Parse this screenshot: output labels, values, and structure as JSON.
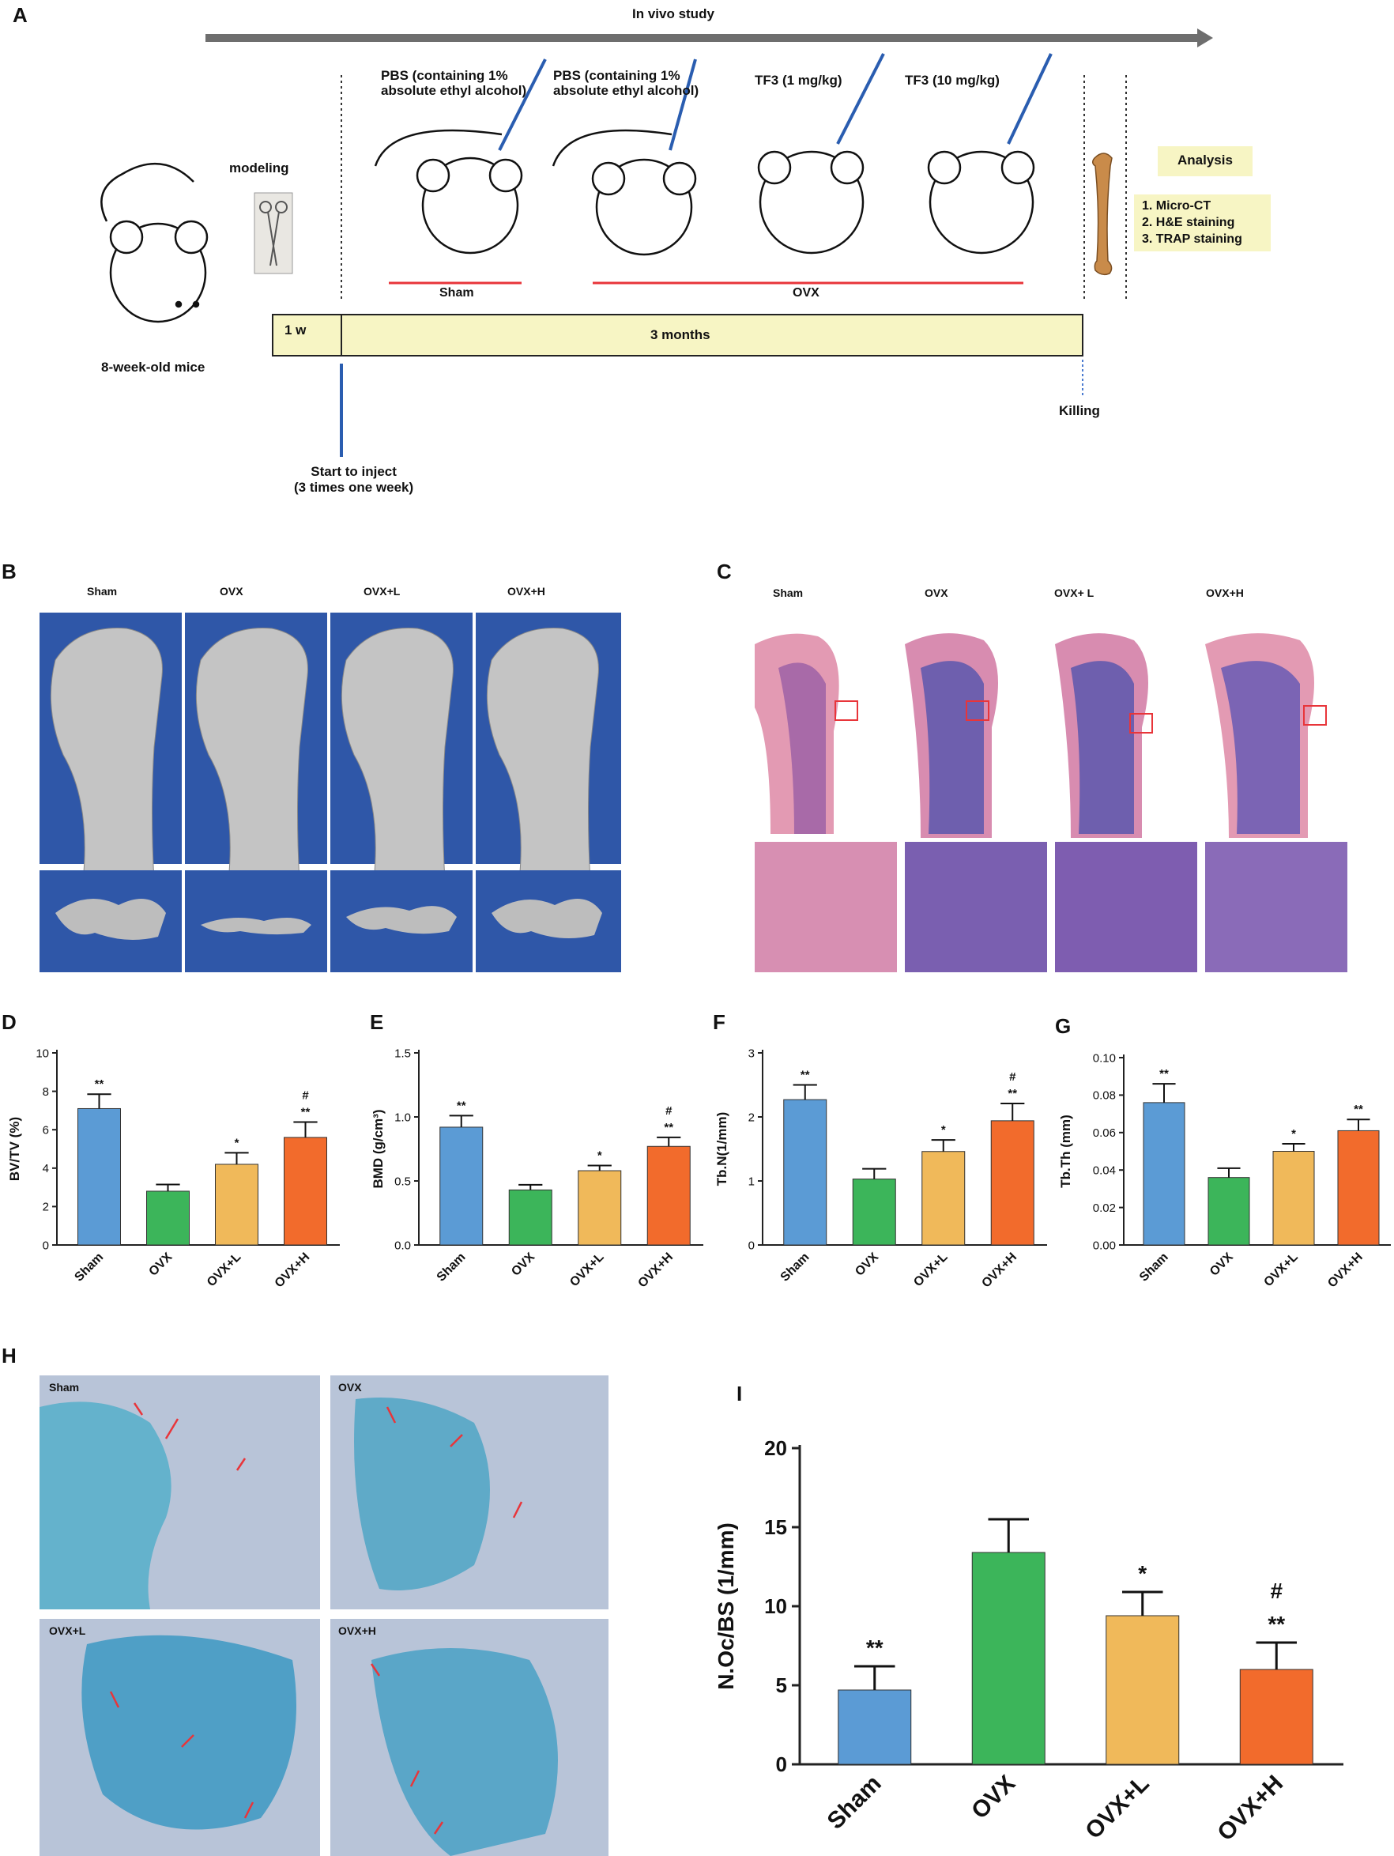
{
  "panel_labels": [
    "A",
    "B",
    "C",
    "D",
    "E",
    "F",
    "G",
    "H",
    "I"
  ],
  "panel_a": {
    "arrow_label": "In vivo study",
    "modeling_label": "modeling",
    "mice_label": "8-week-old mice",
    "groups": [
      {
        "label": "PBS (containing 1%\nabsolute ethyl alcohol)"
      },
      {
        "label": "PBS (containing 1%\nabsolute ethyl alcohol)"
      },
      {
        "label": "TF3 (1 mg/kg)"
      },
      {
        "label": "TF3 (10 mg/kg)"
      }
    ],
    "sham_label": "Sham",
    "ovx_label": "OVX",
    "timeline_week": "1 w",
    "timeline_months": "3 months",
    "inject_label": "Start to inject\n(3 times one week)",
    "killing_label": "Killing",
    "analysis_title": "Analysis",
    "analysis_items": [
      "1. Micro-CT",
      "2. H&E staining",
      "3. TRAP staining"
    ],
    "colors": {
      "timeline_fill": "#f7f5c4",
      "analysis_fill": "#f7f5c4",
      "group_line": "#e8353a",
      "arrow": "#6e6e6e"
    }
  },
  "panel_b": {
    "groups": [
      "Sham",
      "OVX",
      "OVX+L",
      "OVX+H"
    ],
    "background": "#2f57a8"
  },
  "panel_c": {
    "groups": [
      "Sham",
      "OVX",
      "OVX+ L",
      "OVX+H"
    ]
  },
  "panel_h": {
    "groups": [
      "Sham",
      "OVX",
      "OVX+L",
      "OVX+H"
    ]
  },
  "chart_data": [
    {
      "id": "D",
      "type": "bar",
      "categories": [
        "Sham",
        "OVX",
        "OVX+L",
        "OVX+H"
      ],
      "values": [
        7.1,
        2.8,
        4.2,
        5.6
      ],
      "errors": [
        0.75,
        0.35,
        0.6,
        0.8
      ],
      "annotations": [
        "**",
        "",
        "*",
        "#\n**"
      ],
      "ylabel": "BV/TV (%)",
      "ylim": [
        0,
        10
      ],
      "yticks": [
        "0",
        "2",
        "4",
        "6",
        "8",
        "10"
      ],
      "colors": [
        "#5b9bd5",
        "#3cb55a",
        "#f0b95a",
        "#f26b2c"
      ]
    },
    {
      "id": "E",
      "type": "bar",
      "categories": [
        "Sham",
        "OVX",
        "OVX+L",
        "OVX+H"
      ],
      "values": [
        0.92,
        0.43,
        0.58,
        0.77
      ],
      "errors": [
        0.09,
        0.04,
        0.04,
        0.07
      ],
      "annotations": [
        "**",
        "",
        "*",
        "#\n**"
      ],
      "ylabel": "BMD (g/cm³)",
      "ylim": [
        0,
        1.5
      ],
      "yticks": [
        "0.0",
        "0.5",
        "1.0",
        "1.5"
      ],
      "colors": [
        "#5b9bd5",
        "#3cb55a",
        "#f0b95a",
        "#f26b2c"
      ]
    },
    {
      "id": "F",
      "type": "bar",
      "categories": [
        "Sham",
        "OVX",
        "OVX+L",
        "OVX+H"
      ],
      "values": [
        2.27,
        1.03,
        1.46,
        1.94
      ],
      "errors": [
        0.23,
        0.16,
        0.18,
        0.27
      ],
      "annotations": [
        "**",
        "",
        "*",
        "#\n**"
      ],
      "ylabel": "Tb.N(1/mm)",
      "ylim": [
        0,
        3
      ],
      "yticks": [
        "0",
        "1",
        "2",
        "3"
      ],
      "colors": [
        "#5b9bd5",
        "#3cb55a",
        "#f0b95a",
        "#f26b2c"
      ]
    },
    {
      "id": "G",
      "type": "bar",
      "categories": [
        "Sham",
        "OVX",
        "OVX+L",
        "OVX+H"
      ],
      "values": [
        0.076,
        0.036,
        0.05,
        0.061
      ],
      "errors": [
        0.01,
        0.005,
        0.004,
        0.006
      ],
      "annotations": [
        "**",
        "",
        "*",
        "**"
      ],
      "ylabel": "Tb.Th (mm)",
      "ylim": [
        0,
        0.1
      ],
      "yticks": [
        "0.00",
        "0.02",
        "0.04",
        "0.06",
        "0.08",
        "0.10"
      ],
      "colors": [
        "#5b9bd5",
        "#3cb55a",
        "#f0b95a",
        "#f26b2c"
      ]
    },
    {
      "id": "I",
      "type": "bar",
      "categories": [
        "Sham",
        "OVX",
        "OVX+L",
        "OVX+H"
      ],
      "values": [
        4.7,
        13.4,
        9.4,
        6.0
      ],
      "errors": [
        1.5,
        2.1,
        1.5,
        1.7
      ],
      "annotations": [
        "**",
        "",
        "*",
        "#\n**"
      ],
      "ylabel": "N.Oc/BS (1/mm)",
      "ylim": [
        0,
        20
      ],
      "yticks": [
        "0",
        "5",
        "10",
        "15",
        "20"
      ],
      "colors": [
        "#5b9bd5",
        "#3cb55a",
        "#f0b95a",
        "#f26b2c"
      ]
    }
  ]
}
